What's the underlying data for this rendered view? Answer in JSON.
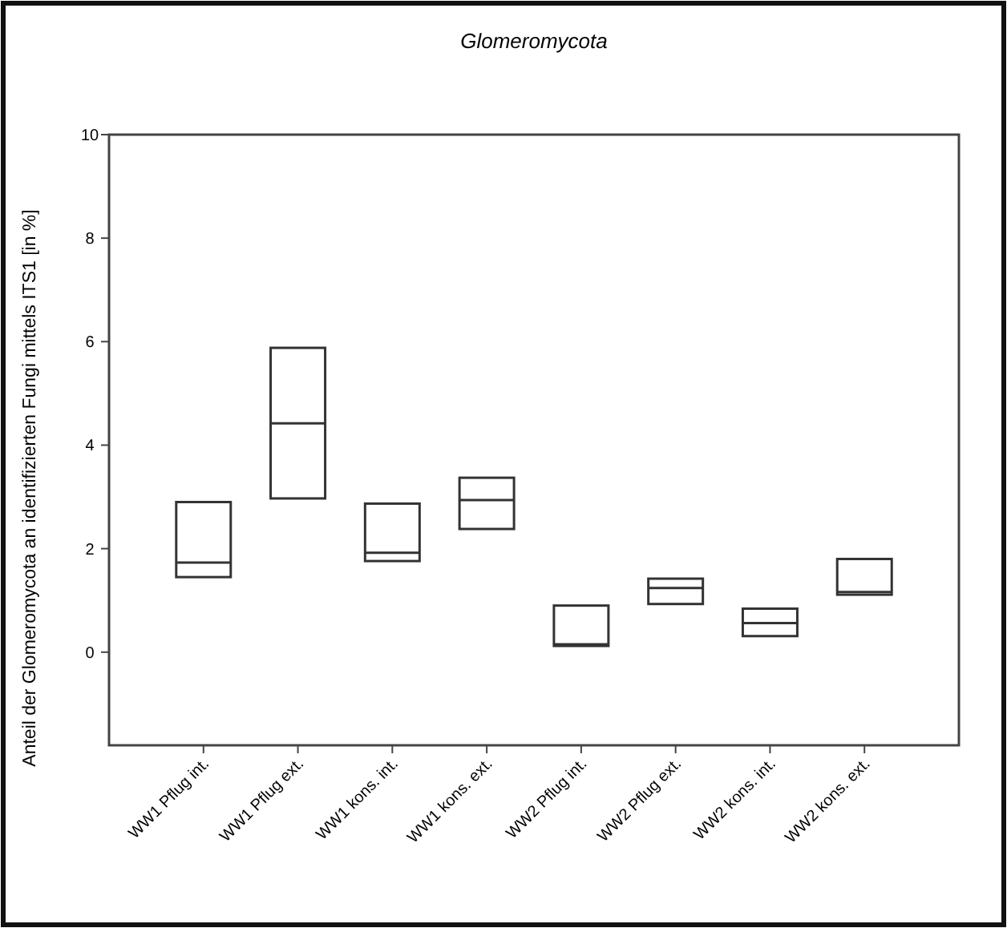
{
  "chart_data": {
    "type": "box",
    "title": "Glomeromycota",
    "ylabel": "Anteil der Glomeromycota an identifizierten Fungi mittels ITS1 [in %]",
    "categories": [
      "WW1 Pflug int.",
      "WW1 Pflug ext.",
      "WW1 kons. int.",
      "WW1 kons. ext.",
      "WW2 Pflug int.",
      "WW2 Pflug ext.",
      "WW2 kons. int.",
      "WW2 kons. ext."
    ],
    "boxes": [
      {
        "low": 1.45,
        "q1": 1.45,
        "median": 1.73,
        "q3": 2.9,
        "high": 2.9
      },
      {
        "low": 2.97,
        "q1": 2.97,
        "median": 4.42,
        "q3": 5.88,
        "high": 5.88
      },
      {
        "low": 1.76,
        "q1": 1.76,
        "median": 1.92,
        "q3": 2.87,
        "high": 2.87
      },
      {
        "low": 2.38,
        "q1": 2.38,
        "median": 2.94,
        "q3": 3.37,
        "high": 3.37
      },
      {
        "low": 0.12,
        "q1": 0.12,
        "median": 0.15,
        "q3": 0.9,
        "high": 0.9
      },
      {
        "low": 0.93,
        "q1": 0.93,
        "median": 1.24,
        "q3": 1.42,
        "high": 1.42
      },
      {
        "low": 0.31,
        "q1": 0.31,
        "median": 0.56,
        "q3": 0.84,
        "high": 0.84
      },
      {
        "low": 1.11,
        "q1": 1.11,
        "median": 1.16,
        "q3": 1.8,
        "high": 1.8
      }
    ],
    "ylim": [
      -1.8,
      10
    ],
    "yticks": [
      0,
      2,
      4,
      6,
      8,
      10
    ],
    "grid": false
  }
}
